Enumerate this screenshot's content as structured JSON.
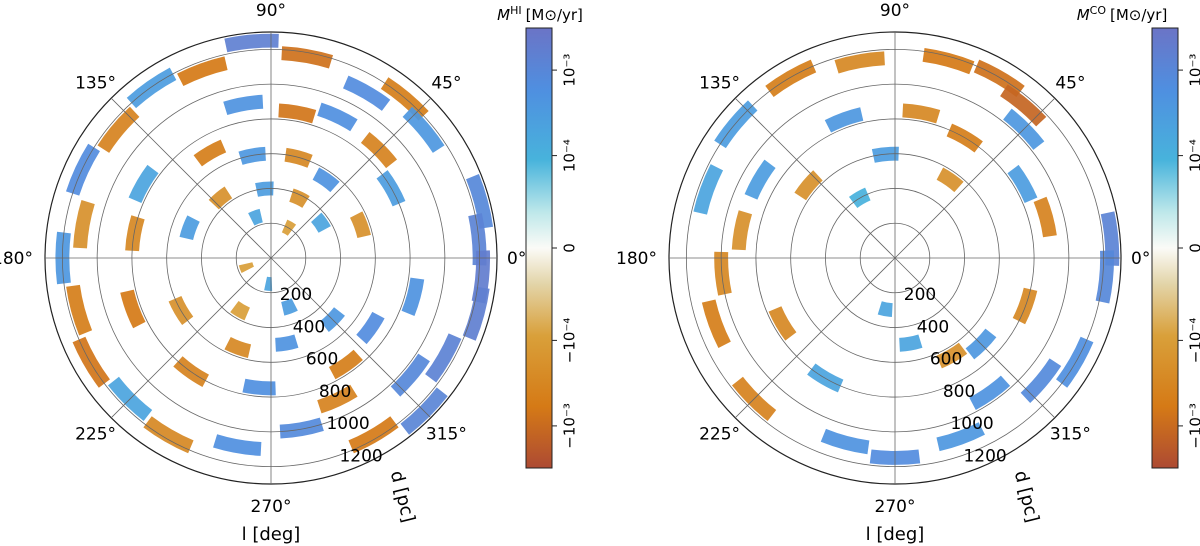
{
  "chart_data": [
    {
      "type": "heatmap",
      "projection": "polar",
      "id": "hi",
      "colorbar_label": "Ṁ^HI [M⊙/yr]",
      "colorbar_label_main": "M",
      "colorbar_label_sup": "HI",
      "colorbar_label_unit": "[M⊙/yr]",
      "colorbar_scale": "symlog",
      "colorbar_range": [
        -0.003,
        0.003
      ],
      "colorbar_ticks": [
        "10⁻³",
        "10⁻⁴",
        "0",
        "−10⁻⁴",
        "−10⁻³"
      ],
      "colorbar_tick_values": [
        0.001,
        0.0001,
        0,
        -0.0001,
        -0.001
      ],
      "angle_labels": [
        "90°",
        "135°",
        "45°",
        "180°",
        "0°",
        "225°",
        "315°",
        "270°"
      ],
      "angle_values": [
        90,
        135,
        45,
        180,
        0,
        225,
        315,
        270
      ],
      "radial_labels": [
        "200",
        "400",
        "600",
        "800",
        "1000",
        "1200"
      ],
      "radial_values": [
        200,
        400,
        600,
        800,
        1000,
        1200
      ],
      "r_max": 1300,
      "xlabel": "l [deg]",
      "rlabel": "d [pc]",
      "cells": [
        {
          "l": 95,
          "d": 1250,
          "v": 0.0015
        },
        {
          "l": 80,
          "d": 1180,
          "v": -0.0008
        },
        {
          "l": 60,
          "d": 1100,
          "v": 0.0007
        },
        {
          "l": 50,
          "d": 1200,
          "v": -0.0005
        },
        {
          "l": 40,
          "d": 1150,
          "v": 0.0004
        },
        {
          "l": 15,
          "d": 1250,
          "v": 0.0009
        },
        {
          "l": 5,
          "d": 1200,
          "v": 0.0012
        },
        {
          "l": -5,
          "d": 1220,
          "v": 0.0018
        },
        {
          "l": -15,
          "d": 1230,
          "v": 0.0016
        },
        {
          "l": -30,
          "d": 1150,
          "v": 0.0013
        },
        {
          "l": -45,
          "d": 1250,
          "v": 0.0011
        },
        {
          "l": -40,
          "d": 1050,
          "v": 0.0009
        },
        {
          "l": -60,
          "d": 1180,
          "v": -0.0006
        },
        {
          "l": -65,
          "d": 900,
          "v": -0.0004
        },
        {
          "l": -80,
          "d": 1000,
          "v": 0.0008
        },
        {
          "l": -100,
          "d": 1100,
          "v": 0.0006
        },
        {
          "l": -120,
          "d": 1180,
          "v": -0.0003
        },
        {
          "l": -135,
          "d": 1150,
          "v": 0.0002
        },
        {
          "l": -150,
          "d": 1200,
          "v": -0.0007
        },
        {
          "l": -165,
          "d": 1150,
          "v": -0.0005
        },
        {
          "l": 180,
          "d": 1200,
          "v": 0.0004
        },
        {
          "l": 170,
          "d": 1100,
          "v": -0.0002
        },
        {
          "l": 155,
          "d": 1200,
          "v": 0.0007
        },
        {
          "l": 140,
          "d": 1150,
          "v": -0.0004
        },
        {
          "l": 125,
          "d": 1200,
          "v": 0.0003
        },
        {
          "l": 110,
          "d": 1150,
          "v": -0.0006
        },
        {
          "l": 100,
          "d": 900,
          "v": 0.0005
        },
        {
          "l": 80,
          "d": 850,
          "v": -0.0007
        },
        {
          "l": 65,
          "d": 900,
          "v": 0.0006
        },
        {
          "l": 45,
          "d": 880,
          "v": -0.0004
        },
        {
          "l": 30,
          "d": 800,
          "v": 0.0003
        },
        {
          "l": -15,
          "d": 850,
          "v": 0.0005
        },
        {
          "l": -35,
          "d": 700,
          "v": 0.0007
        },
        {
          "l": -55,
          "d": 750,
          "v": -0.0005
        },
        {
          "l": -95,
          "d": 750,
          "v": 0.0006
        },
        {
          "l": -125,
          "d": 800,
          "v": -0.0004
        },
        {
          "l": -160,
          "d": 850,
          "v": -0.0006
        },
        {
          "l": 170,
          "d": 800,
          "v": -0.0003
        },
        {
          "l": 150,
          "d": 850,
          "v": 0.0002
        },
        {
          "l": 120,
          "d": 700,
          "v": -0.0005
        },
        {
          "l": 100,
          "d": 600,
          "v": 0.0004
        },
        {
          "l": 75,
          "d": 600,
          "v": -0.0003
        },
        {
          "l": 55,
          "d": 550,
          "v": 0.0005
        },
        {
          "l": 20,
          "d": 550,
          "v": -0.0002
        },
        {
          "l": -45,
          "d": 500,
          "v": 0.0004
        },
        {
          "l": -80,
          "d": 500,
          "v": 0.0005
        },
        {
          "l": -110,
          "d": 550,
          "v": -0.0003
        },
        {
          "l": -150,
          "d": 600,
          "v": -0.0002
        },
        {
          "l": 160,
          "d": 500,
          "v": 0.0003
        },
        {
          "l": 130,
          "d": 450,
          "v": -0.0002
        },
        {
          "l": 95,
          "d": 400,
          "v": 0.0003
        },
        {
          "l": 65,
          "d": 380,
          "v": -0.0002
        },
        {
          "l": 35,
          "d": 350,
          "v": 0.0002
        },
        {
          "l": -70,
          "d": 300,
          "v": 0.0003
        },
        {
          "l": -120,
          "d": 350,
          "v": -0.0001
        },
        {
          "l": 110,
          "d": 250,
          "v": 0.0002
        },
        {
          "l": 60,
          "d": 200,
          "v": -0.0001
        },
        {
          "l": -95,
          "d": 150,
          "v": 0.0002
        },
        {
          "l": 200,
          "d": 150,
          "v": -0.0001
        }
      ]
    },
    {
      "type": "heatmap",
      "projection": "polar",
      "id": "co",
      "colorbar_label": "Ṁ^CO [M⊙/yr]",
      "colorbar_label_main": "M",
      "colorbar_label_sup": "CO",
      "colorbar_label_unit": "[M⊙/yr]",
      "colorbar_scale": "symlog",
      "colorbar_range": [
        -0.003,
        0.003
      ],
      "colorbar_ticks": [
        "10⁻³",
        "10⁻⁴",
        "0",
        "−10⁻⁴",
        "−10⁻³"
      ],
      "colorbar_tick_values": [
        0.001,
        0.0001,
        0,
        -0.0001,
        -0.001
      ],
      "angle_labels": [
        "90°",
        "135°",
        "45°",
        "180°",
        "0°",
        "225°",
        "315°",
        "270°"
      ],
      "angle_values": [
        90,
        135,
        45,
        180,
        0,
        225,
        315,
        270
      ],
      "radial_labels": [
        "200",
        "400",
        "600",
        "800",
        "1000",
        "1200"
      ],
      "radial_values": [
        200,
        400,
        600,
        800,
        1000,
        1200
      ],
      "r_max": 1300,
      "xlabel": "l [deg]",
      "rlabel": "d [pc]",
      "cells": [
        {
          "l": 60,
          "d": 1200,
          "v": -0.0008
        },
        {
          "l": 50,
          "d": 1150,
          "v": -0.0012
        },
        {
          "l": 45,
          "d": 1050,
          "v": 0.0004
        },
        {
          "l": 75,
          "d": 1180,
          "v": -0.0006
        },
        {
          "l": 100,
          "d": 1150,
          "v": -0.0003
        },
        {
          "l": 120,
          "d": 1200,
          "v": -0.0005
        },
        {
          "l": 140,
          "d": 1200,
          "v": 0.0003
        },
        {
          "l": 160,
          "d": 1150,
          "v": 0.0002
        },
        {
          "l": 5,
          "d": 1250,
          "v": 0.0012
        },
        {
          "l": -5,
          "d": 1220,
          "v": 0.0009
        },
        {
          "l": -30,
          "d": 1200,
          "v": 0.0006
        },
        {
          "l": -40,
          "d": 1100,
          "v": 0.0008
        },
        {
          "l": -55,
          "d": 950,
          "v": 0.0005
        },
        {
          "l": -70,
          "d": 1100,
          "v": 0.0004
        },
        {
          "l": -90,
          "d": 1150,
          "v": 0.0007
        },
        {
          "l": -105,
          "d": 1100,
          "v": 0.0005
        },
        {
          "l": -135,
          "d": 1150,
          "v": -0.0004
        },
        {
          "l": -160,
          "d": 1100,
          "v": -0.0005
        },
        {
          "l": 185,
          "d": 1000,
          "v": -0.0003
        },
        {
          "l": 170,
          "d": 900,
          "v": -0.0002
        },
        {
          "l": 150,
          "d": 900,
          "v": 0.0003
        },
        {
          "l": 110,
          "d": 850,
          "v": 0.0004
        },
        {
          "l": 80,
          "d": 850,
          "v": -0.0003
        },
        {
          "l": 60,
          "d": 800,
          "v": -0.0005
        },
        {
          "l": 30,
          "d": 850,
          "v": 0.0003
        },
        {
          "l": 15,
          "d": 900,
          "v": -0.0004
        },
        {
          "l": -20,
          "d": 800,
          "v": -0.0003
        },
        {
          "l": -45,
          "d": 700,
          "v": 0.0004
        },
        {
          "l": -60,
          "d": 650,
          "v": -0.0002
        },
        {
          "l": -120,
          "d": 800,
          "v": 0.0002
        },
        {
          "l": -150,
          "d": 750,
          "v": -0.0003
        },
        {
          "l": 140,
          "d": 650,
          "v": -0.0002
        },
        {
          "l": 95,
          "d": 600,
          "v": 0.0003
        },
        {
          "l": 55,
          "d": 550,
          "v": -0.0002
        },
        {
          "l": -80,
          "d": 500,
          "v": 0.0002
        },
        {
          "l": 120,
          "d": 400,
          "v": 0.0001
        },
        {
          "l": -100,
          "d": 300,
          "v": 0.0002
        }
      ]
    }
  ]
}
